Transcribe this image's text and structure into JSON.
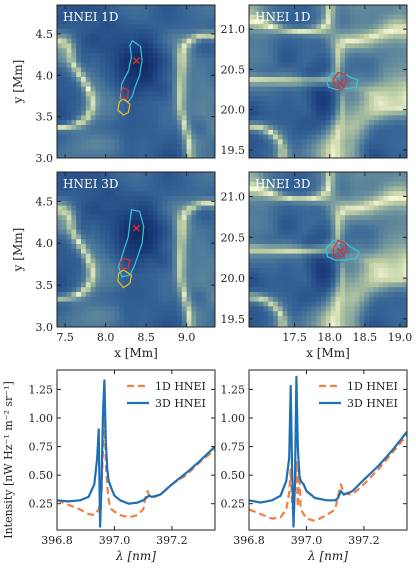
{
  "chart_data": [
    {
      "type": "heatmap",
      "panel_label": "HNEI 1D",
      "ylabel": "y [Mm]",
      "xlim": [
        7.4,
        9.35
      ],
      "ylim": [
        3.0,
        4.85
      ],
      "xticks": [
        7.5,
        8.0,
        8.5,
        9.0
      ],
      "yticks": [
        3.0,
        3.5,
        4.0,
        4.5
      ],
      "show_xticklabels": false,
      "marker": {
        "label": "×",
        "x": 8.38,
        "y": 4.18,
        "color": "#e03030"
      },
      "contours": [
        {
          "color": "#36c6d8",
          "points": [
            [
              8.33,
              4.42
            ],
            [
              8.43,
              4.35
            ],
            [
              8.45,
              4.18
            ],
            [
              8.42,
              4.0
            ],
            [
              8.36,
              3.85
            ],
            [
              8.33,
              3.75
            ],
            [
              8.28,
              3.68
            ],
            [
              8.18,
              3.72
            ],
            [
              8.2,
              3.9
            ],
            [
              8.28,
              4.05
            ],
            [
              8.32,
              4.22
            ],
            [
              8.3,
              4.36
            ]
          ]
        },
        {
          "color": "#e8c020",
          "points": [
            [
              8.22,
              3.72
            ],
            [
              8.3,
              3.65
            ],
            [
              8.28,
              3.55
            ],
            [
              8.22,
              3.52
            ],
            [
              8.15,
              3.58
            ],
            [
              8.17,
              3.68
            ]
          ]
        },
        {
          "color": "#e03030",
          "points": [
            [
              8.22,
              3.85
            ],
            [
              8.28,
              3.82
            ],
            [
              8.27,
              3.72
            ],
            [
              8.2,
              3.72
            ],
            [
              8.19,
              3.8
            ]
          ]
        }
      ]
    },
    {
      "type": "heatmap",
      "panel_label": "HNEI 1D",
      "ylabel": "",
      "xlim": [
        16.85,
        19.1
      ],
      "ylim": [
        19.4,
        21.3
      ],
      "xticks": [
        17.5,
        18.0,
        18.5,
        19.0
      ],
      "yticks": [
        19.5,
        20.0,
        20.5,
        21.0
      ],
      "show_xticklabels": false,
      "marker": {
        "label": "×",
        "x": 18.15,
        "y": 20.33,
        "color": "#e03030"
      },
      "contours": [
        {
          "color": "#36c6d8",
          "points": [
            [
              17.95,
              20.38
            ],
            [
              18.05,
              20.45
            ],
            [
              18.2,
              20.45
            ],
            [
              18.3,
              20.4
            ],
            [
              18.4,
              20.37
            ],
            [
              18.38,
              20.28
            ],
            [
              18.25,
              20.26
            ],
            [
              18.1,
              20.25
            ],
            [
              17.98,
              20.28
            ]
          ]
        },
        {
          "color": "#e03030",
          "points": [
            [
              18.05,
              20.38
            ],
            [
              18.12,
              20.46
            ],
            [
              18.22,
              20.44
            ],
            [
              18.24,
              20.34
            ],
            [
              18.18,
              20.25
            ],
            [
              18.07,
              20.27
            ]
          ]
        }
      ]
    },
    {
      "type": "heatmap",
      "panel_label": "HNEI 3D",
      "ylabel": "y [Mm]",
      "xlabel": "x [Mm]",
      "xlim": [
        7.4,
        9.35
      ],
      "ylim": [
        3.0,
        4.85
      ],
      "xticks": [
        7.5,
        8.0,
        8.5,
        9.0
      ],
      "yticks": [
        3.0,
        3.5,
        4.0,
        4.5
      ],
      "show_xticklabels": true,
      "marker": {
        "label": "×",
        "x": 8.38,
        "y": 4.18,
        "color": "#e03030"
      },
      "contours": [
        {
          "color": "#36c6d8",
          "points": [
            [
              8.32,
              4.4
            ],
            [
              8.42,
              4.38
            ],
            [
              8.47,
              4.2
            ],
            [
              8.45,
              4.0
            ],
            [
              8.4,
              3.85
            ],
            [
              8.35,
              3.72
            ],
            [
              8.3,
              3.62
            ],
            [
              8.2,
              3.6
            ],
            [
              8.16,
              3.72
            ],
            [
              8.22,
              3.9
            ],
            [
              8.28,
              4.08
            ],
            [
              8.3,
              4.25
            ]
          ]
        },
        {
          "color": "#e8c020",
          "points": [
            [
              8.22,
              3.68
            ],
            [
              8.32,
              3.62
            ],
            [
              8.3,
              3.52
            ],
            [
              8.22,
              3.47
            ],
            [
              8.15,
              3.55
            ],
            [
              8.16,
              3.64
            ]
          ]
        },
        {
          "color": "#e03030",
          "points": [
            [
              8.22,
              3.82
            ],
            [
              8.3,
              3.8
            ],
            [
              8.28,
              3.7
            ],
            [
              8.2,
              3.7
            ],
            [
              8.18,
              3.77
            ]
          ]
        }
      ]
    },
    {
      "type": "heatmap",
      "panel_label": "HNEI 3D",
      "ylabel": "",
      "xlabel": "x [Mm]",
      "xlim": [
        16.85,
        19.1
      ],
      "ylim": [
        19.4,
        21.3
      ],
      "xticks": [
        17.5,
        18.0,
        18.5,
        19.0
      ],
      "yticks": [
        19.5,
        20.0,
        20.5,
        21.0
      ],
      "show_xticklabels": true,
      "marker": {
        "label": "×",
        "x": 18.15,
        "y": 20.33,
        "color": "#e03030"
      },
      "contours": [
        {
          "color": "#36c6d8",
          "points": [
            [
              17.95,
              20.36
            ],
            [
              18.05,
              20.46
            ],
            [
              18.2,
              20.45
            ],
            [
              18.3,
              20.38
            ],
            [
              18.42,
              20.32
            ],
            [
              18.38,
              20.24
            ],
            [
              18.22,
              20.22
            ],
            [
              18.08,
              20.22
            ],
            [
              17.97,
              20.26
            ]
          ]
        },
        {
          "color": "#e03030",
          "points": [
            [
              18.05,
              20.36
            ],
            [
              18.12,
              20.46
            ],
            [
              18.22,
              20.43
            ],
            [
              18.24,
              20.33
            ],
            [
              18.16,
              20.25
            ],
            [
              18.06,
              20.27
            ]
          ]
        }
      ]
    },
    {
      "type": "line",
      "xlabel": "λ [nm]",
      "ylabel": "Intensity [nW Hz⁻¹ m⁻² sr⁻¹]",
      "xlim": [
        396.8,
        397.35
      ],
      "ylim": [
        0.02,
        1.42
      ],
      "xticks": [
        396.8,
        397.0,
        397.2
      ],
      "yticks": [
        0.25,
        0.5,
        0.75,
        1.0,
        1.25
      ],
      "legend": "top-right",
      "series": [
        {
          "name": "1D HNEI",
          "color": "#f08040",
          "dash": "dashed",
          "x": [
            396.8,
            396.84,
            396.88,
            396.91,
            396.93,
            396.945,
            396.955,
            396.96,
            396.965,
            396.97,
            396.975,
            396.98,
            396.985,
            396.99,
            397.0,
            397.02,
            397.05,
            397.08,
            397.1,
            397.11,
            397.115,
            397.12,
            397.13,
            397.16,
            397.2,
            397.25,
            397.3,
            397.35
          ],
          "y": [
            0.28,
            0.24,
            0.2,
            0.16,
            0.15,
            0.2,
            0.35,
            0.75,
            1.1,
            0.6,
            0.4,
            0.28,
            0.22,
            0.2,
            0.18,
            0.15,
            0.13,
            0.15,
            0.2,
            0.33,
            0.36,
            0.33,
            0.3,
            0.33,
            0.42,
            0.5,
            0.62,
            0.72
          ]
        },
        {
          "name": "3D HNEI",
          "color": "#1f6fb4",
          "dash": "solid",
          "x": [
            396.8,
            396.84,
            396.88,
            396.91,
            396.93,
            396.94,
            396.945,
            396.95,
            396.955,
            396.96,
            396.965,
            396.97,
            396.975,
            396.98,
            396.99,
            397.0,
            397.02,
            397.05,
            397.08,
            397.1,
            397.11,
            397.12,
            397.13,
            397.16,
            397.2,
            397.25,
            397.3,
            397.35
          ],
          "y": [
            0.28,
            0.27,
            0.28,
            0.31,
            0.42,
            0.65,
            0.9,
            0.05,
            0.4,
            1.05,
            1.33,
            0.8,
            0.55,
            0.45,
            0.38,
            0.32,
            0.28,
            0.25,
            0.26,
            0.28,
            0.3,
            0.32,
            0.31,
            0.33,
            0.42,
            0.52,
            0.63,
            0.75
          ]
        }
      ]
    },
    {
      "type": "line",
      "xlabel": "λ [nm]",
      "ylabel": "",
      "xlim": [
        396.8,
        397.35
      ],
      "ylim": [
        0.02,
        1.42
      ],
      "xticks": [
        396.8,
        397.0,
        397.2
      ],
      "yticks": [
        0.25,
        0.5,
        0.75,
        1.0,
        1.25
      ],
      "legend": "top-right",
      "series": [
        {
          "name": "1D HNEI",
          "color": "#f08040",
          "dash": "dashed",
          "x": [
            396.8,
            396.84,
            396.88,
            396.91,
            396.93,
            396.94,
            396.945,
            396.95,
            396.955,
            396.96,
            396.965,
            396.97,
            396.975,
            396.98,
            396.99,
            397.0,
            397.03,
            397.07,
            397.1,
            397.11,
            397.12,
            397.13,
            397.16,
            397.2,
            397.25,
            397.3,
            397.35
          ],
          "y": [
            0.2,
            0.16,
            0.12,
            0.13,
            0.2,
            0.35,
            0.55,
            0.25,
            0.15,
            0.4,
            0.62,
            0.22,
            0.55,
            0.2,
            0.16,
            0.12,
            0.1,
            0.15,
            0.2,
            0.32,
            0.42,
            0.34,
            0.33,
            0.42,
            0.55,
            0.7,
            0.85
          ]
        },
        {
          "name": "3D HNEI",
          "color": "#1f6fb4",
          "dash": "solid",
          "x": [
            396.8,
            396.84,
            396.88,
            396.91,
            396.93,
            396.94,
            396.945,
            396.95,
            396.955,
            396.96,
            396.965,
            396.97,
            396.975,
            396.98,
            396.99,
            397.0,
            397.03,
            397.07,
            397.1,
            397.11,
            397.12,
            397.13,
            397.16,
            397.2,
            397.25,
            397.3,
            397.35
          ],
          "y": [
            0.28,
            0.26,
            0.28,
            0.32,
            0.45,
            0.65,
            1.28,
            0.55,
            0.05,
            0.45,
            1.36,
            0.75,
            0.5,
            0.45,
            0.42,
            0.36,
            0.3,
            0.28,
            0.28,
            0.3,
            0.36,
            0.33,
            0.36,
            0.46,
            0.58,
            0.72,
            0.88
          ]
        }
      ]
    }
  ]
}
